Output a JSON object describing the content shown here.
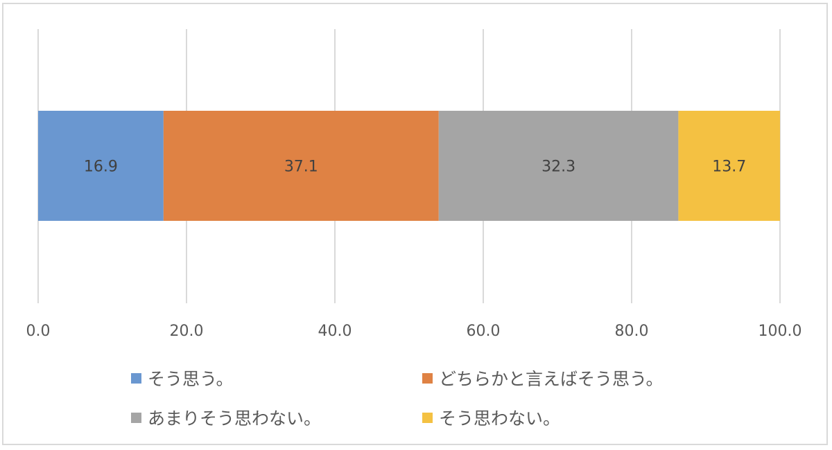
{
  "chart_data": {
    "type": "bar",
    "orientation": "horizontal",
    "stacked": true,
    "xlim": [
      0,
      100
    ],
    "x_ticks": [
      "0.0",
      "20.0",
      "40.0",
      "60.0",
      "80.0",
      "100.0"
    ],
    "x_tick_values": [
      0,
      20,
      40,
      60,
      80,
      100
    ],
    "grid": true,
    "legend_position": "bottom",
    "series": [
      {
        "name": "そう思う。",
        "values": [
          16.9
        ],
        "label": "16.9",
        "color": "#6a97d0"
      },
      {
        "name": "どちらかと言えばそう思う。",
        "values": [
          37.1
        ],
        "label": "37.1",
        "color": "#df8244"
      },
      {
        "name": "あまりそう思わない。",
        "values": [
          32.3
        ],
        "label": "32.3",
        "color": "#a5a5a5"
      },
      {
        "name": "そう思わない。",
        "values": [
          13.7
        ],
        "label": "13.7",
        "color": "#f4c142"
      }
    ]
  }
}
